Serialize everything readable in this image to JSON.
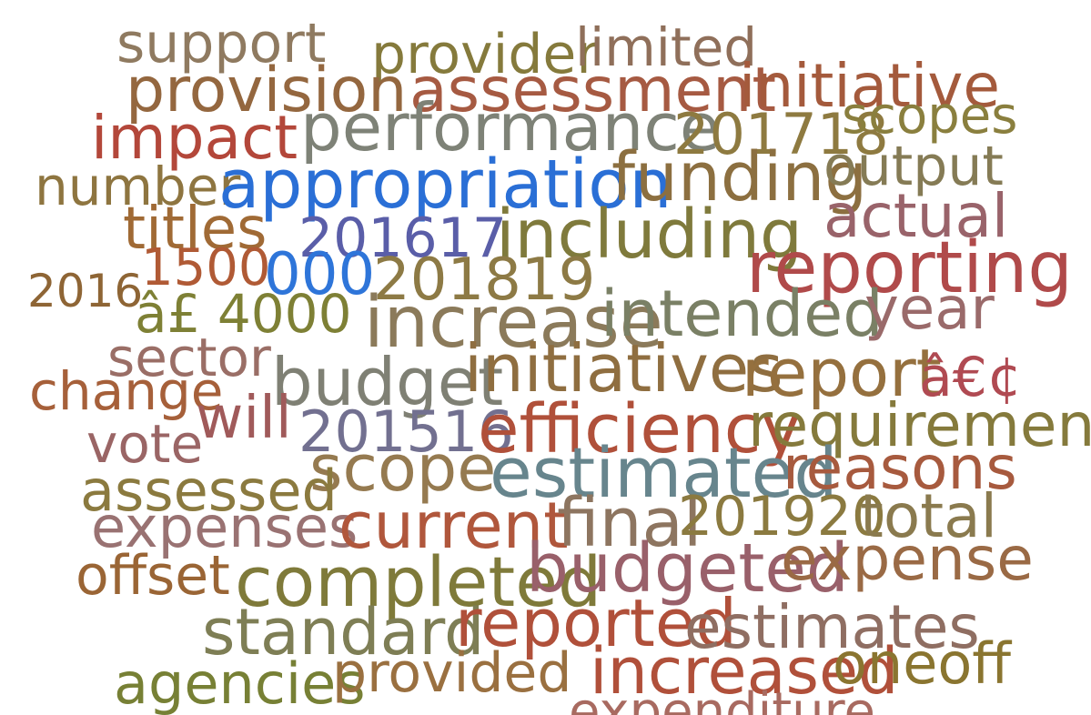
{
  "words": [
    {
      "text": "support",
      "color": "#8f7a60"
    },
    {
      "text": "provider",
      "color": "#857a3c"
    },
    {
      "text": "limited",
      "color": "#8f6f5a"
    },
    {
      "text": "provision",
      "color": "#94673f"
    },
    {
      "text": "assessment",
      "color": "#a65a42"
    },
    {
      "text": "initiative",
      "color": "#a45a3c"
    },
    {
      "text": "impact",
      "color": "#b3473a"
    },
    {
      "text": "performance",
      "color": "#7e8277"
    },
    {
      "text": "201718",
      "color": "#8e7a40"
    },
    {
      "text": "scopes",
      "color": "#8a7f3e"
    },
    {
      "text": "number",
      "color": "#8e7540"
    },
    {
      "text": "appropriation",
      "color": "#2a6fd6"
    },
    {
      "text": "funding",
      "color": "#8c6f40"
    },
    {
      "text": "output",
      "color": "#857b55"
    },
    {
      "text": "actual",
      "color": "#99636a"
    },
    {
      "text": "titles",
      "color": "#a06a35"
    },
    {
      "text": "201617",
      "color": "#5a5ea8"
    },
    {
      "text": "including",
      "color": "#7f7a3c"
    },
    {
      "text": "reporting",
      "color": "#b04a4a"
    },
    {
      "text": "1500",
      "color": "#b05a35"
    },
    {
      "text": "000",
      "color": "#2e75d9"
    },
    {
      "text": "201819",
      "color": "#8d7a45"
    },
    {
      "text": "2016",
      "color": "#8e6535"
    },
    {
      "text": "â£ 4000",
      "color": "#7e8035"
    },
    {
      "text": "increase",
      "color": "#8b7a5a"
    },
    {
      "text": "intended",
      "color": "#7a8065"
    },
    {
      "text": "year",
      "color": "#9a6a6a"
    },
    {
      "text": "sector",
      "color": "#9a6e66"
    },
    {
      "text": "budget",
      "color": "#7f8074"
    },
    {
      "text": "initiatives",
      "color": "#8f6e40"
    },
    {
      "text": "report",
      "color": "#95703e"
    },
    {
      "text": "â€¢",
      "color": "#b04a52"
    },
    {
      "text": "change",
      "color": "#a6603a"
    },
    {
      "text": "will",
      "color": "#a05a5a"
    },
    {
      "text": "201516",
      "color": "#727090"
    },
    {
      "text": "efficiency",
      "color": "#b0503a"
    },
    {
      "text": "requirement",
      "color": "#857a3c"
    },
    {
      "text": "vote",
      "color": "#9a6565"
    },
    {
      "text": "scope",
      "color": "#957a50"
    },
    {
      "text": "estimated",
      "color": "#67858d"
    },
    {
      "text": "reasons",
      "color": "#a75a3e"
    },
    {
      "text": "assessed",
      "color": "#8b7a3f"
    },
    {
      "text": "expenses",
      "color": "#997272"
    },
    {
      "text": "current",
      "color": "#b0573c"
    },
    {
      "text": "final",
      "color": "#8d7560"
    },
    {
      "text": "201920",
      "color": "#8b7a40"
    },
    {
      "text": "total",
      "color": "#8a7a4e"
    },
    {
      "text": "offset",
      "color": "#9a6535"
    },
    {
      "text": "completed",
      "color": "#7f7a3a"
    },
    {
      "text": "budgeted",
      "color": "#99606a"
    },
    {
      "text": "expense",
      "color": "#9a6a45"
    },
    {
      "text": "standard",
      "color": "#7e7e55"
    },
    {
      "text": "reported",
      "color": "#b0503a"
    },
    {
      "text": "estimates",
      "color": "#8f6e62"
    },
    {
      "text": "agencies",
      "color": "#778035"
    },
    {
      "text": "provided",
      "color": "#9a7040"
    },
    {
      "text": "increased",
      "color": "#b0503a"
    },
    {
      "text": "oneoff",
      "color": "#8a7530"
    },
    {
      "text": "expenditure",
      "color": "#a86a60"
    }
  ]
}
